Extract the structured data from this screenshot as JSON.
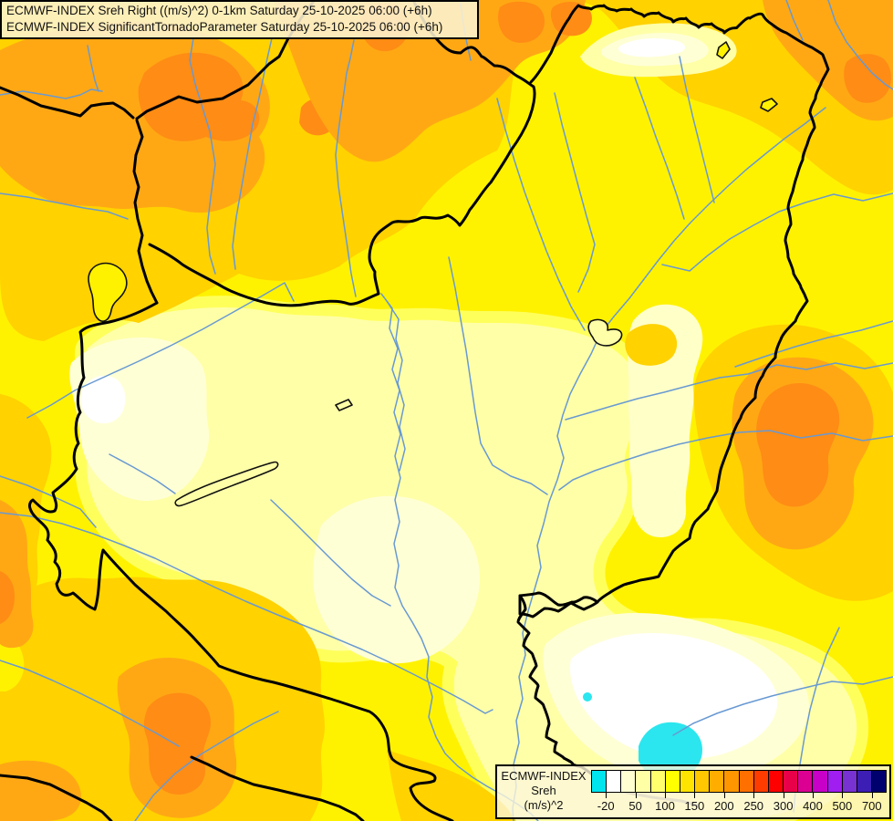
{
  "title": {
    "line1": "ECMWF-INDEX Sreh Right ((m/s)^2) 0-1km Saturday 25-10-2025 06:00 (+6h)",
    "line2": "ECMWF-INDEX SignificantTornadoParameter Saturday 25-10-2025 06:00 (+6h)"
  },
  "legend": {
    "model": "ECMWF-INDEX",
    "parameter": "Sreh",
    "unit": "(m/s)^2",
    "tick_labels": [
      "-20",
      "50",
      "100",
      "150",
      "200",
      "250",
      "300",
      "400",
      "500",
      "700"
    ],
    "tick_cell_boundaries": [
      1,
      3,
      5,
      7,
      9,
      11,
      13,
      15,
      17,
      19
    ],
    "colors": [
      "#00E4EE",
      "#FFFFFF",
      "#FFFFD2",
      "#FFFFA6",
      "#FFFF6E",
      "#FFFF00",
      "#FFE400",
      "#FFC800",
      "#FFAE00",
      "#FF9600",
      "#FF7000",
      "#FF3C00",
      "#FF0000",
      "#E80048",
      "#DC0092",
      "#C800C8",
      "#A01EF0",
      "#7832D2",
      "#3C1EB4",
      "#00006E"
    ]
  },
  "map": {
    "description": "Filled contour field of 0-1km storm relative helicity over Hungary and neighbouring countries",
    "palette": {
      "bright_yellow": "#FFF200",
      "light_yellow": "#FFFF5C",
      "pale_yellow": "#FFFFA8",
      "paler_yellow": "#FFFFD6",
      "white": "#FFFFFF",
      "gold": "#FFD200",
      "orange": "#FFA814",
      "deep_orange": "#FF8C14",
      "cyan": "#2BE6EE",
      "river_blue": "#6899D2",
      "border_black": "#000000",
      "border_gray": "#8A8A8A",
      "panel_cream": "#FDF2D2"
    }
  }
}
